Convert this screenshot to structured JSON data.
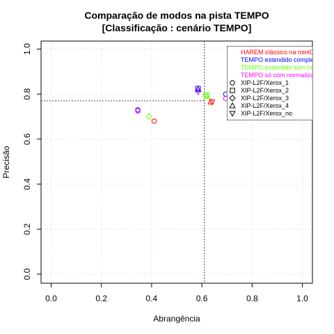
{
  "chart_data": {
    "type": "scatter",
    "title": "Comparação de modos na pista TEMPO",
    "subtitle": "[Classificação : cenário TEMPO]",
    "xlabel": "Abrangência",
    "ylabel": "Precisão",
    "xlim": [
      0,
      1
    ],
    "ylim": [
      0,
      1
    ],
    "xticks": [
      "0.0",
      "0.2",
      "0.4",
      "0.6",
      "0.8",
      "1.0"
    ],
    "yticks": [
      "0.0",
      "0.2",
      "0.4",
      "0.6",
      "0.8",
      "1.0"
    ],
    "grid": true,
    "reference_lines": {
      "vertical_x": 0.61,
      "horizontal_y": 0.77
    },
    "legend_position": "top-right",
    "color_legend": [
      {
        "label": "HAREM clássico na miniC",
        "color": "#ff0000"
      },
      {
        "label": "TEMPO estendido comple",
        "color": "#0000ff"
      },
      {
        "label": "TEMPO estendido sem no",
        "color": "#66ff00"
      },
      {
        "label": "TEMPO só com normaliza",
        "color": "#ff00ff"
      }
    ],
    "shape_legend": [
      {
        "label": "XIP-L2F/Xerox_1",
        "shape": "circle"
      },
      {
        "label": "XIP-L2F/Xerox_2",
        "shape": "square"
      },
      {
        "label": "XIP-L2F/Xerox_3",
        "shape": "diamond"
      },
      {
        "label": "XIP-L2F/Xerox_4",
        "shape": "triangle-up"
      },
      {
        "label": "XIP-L2F/Xerox_no",
        "shape": "triangle-down"
      }
    ],
    "points": [
      {
        "x": 0.41,
        "y": 0.68,
        "color": "#ff0000",
        "shape": "circle"
      },
      {
        "x": 0.345,
        "y": 0.73,
        "color": "#0000ff",
        "shape": "circle"
      },
      {
        "x": 0.345,
        "y": 0.725,
        "color": "#ff00ff",
        "shape": "circle"
      },
      {
        "x": 0.39,
        "y": 0.7,
        "color": "#66ff00",
        "shape": "diamond"
      },
      {
        "x": 0.585,
        "y": 0.825,
        "color": "#0000ff",
        "shape": "square"
      },
      {
        "x": 0.585,
        "y": 0.81,
        "color": "#ff00ff",
        "shape": "triangle-down"
      },
      {
        "x": 0.585,
        "y": 0.82,
        "color": "#0000ff",
        "shape": "triangle-up"
      },
      {
        "x": 0.615,
        "y": 0.795,
        "color": "#66ff00",
        "shape": "circle"
      },
      {
        "x": 0.62,
        "y": 0.795,
        "color": "#66ff00",
        "shape": "square"
      },
      {
        "x": 0.62,
        "y": 0.79,
        "color": "#66ff00",
        "shape": "triangle-up"
      },
      {
        "x": 0.635,
        "y": 0.765,
        "color": "#ff0000",
        "shape": "triangle-up"
      },
      {
        "x": 0.64,
        "y": 0.765,
        "color": "#ff0000",
        "shape": "triangle-down"
      },
      {
        "x": 0.695,
        "y": 0.8,
        "color": "#0000ff",
        "shape": "circle"
      },
      {
        "x": 0.695,
        "y": 0.78,
        "color": "#ff00ff",
        "shape": "circle"
      }
    ]
  }
}
